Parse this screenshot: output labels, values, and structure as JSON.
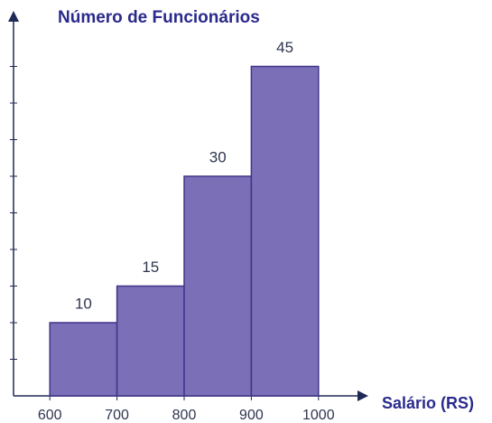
{
  "chart_data": {
    "type": "histogram",
    "title": "Número de Funcionários",
    "xlabel": "Salário (RS)",
    "bins": [
      600,
      700,
      800,
      900,
      1000
    ],
    "values": [
      10,
      15,
      30,
      45
    ],
    "color": "#7b6fb8",
    "xlim": [
      550,
      1050
    ],
    "xticks": [
      600,
      700,
      800,
      900,
      1000
    ],
    "ylim": [
      0,
      50
    ],
    "yticks": [
      5,
      10,
      15,
      20,
      25,
      30,
      35,
      40,
      45
    ]
  }
}
